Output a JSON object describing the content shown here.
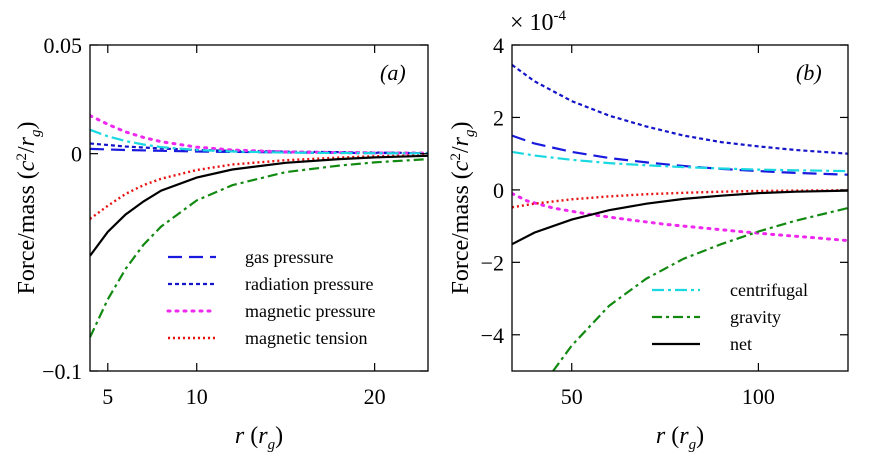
{
  "figure": {
    "ylabel": "Force/mass",
    "ylabel_unit_c": "c",
    "ylabel_unit_r": "r",
    "ylabel_unit_sub": "g",
    "ylabel_unit_sup": "2",
    "xlabel": "r",
    "xlabel_sub": "g",
    "multiplier_prefix": "× 10",
    "multiplier_exp": "-4"
  },
  "series_styles": {
    "gas_pressure": {
      "label": "gas pressure",
      "color": "#1a1adf",
      "dash": "14,7",
      "width": 2.2
    },
    "radiation_pressure": {
      "label": "radiation pressure",
      "color": "#1414c8",
      "dash": "4,3",
      "width": 2.2
    },
    "magnetic_pressure": {
      "label": "magnetic pressure",
      "color": "#ee28ee",
      "dash": "2,6",
      "width": 3
    },
    "magnetic_tension": {
      "label": "magnetic tension",
      "color": "#e81010",
      "dash": "2,3",
      "width": 2.4
    },
    "centrifugal": {
      "label": "centrifugal",
      "color": "#18d8e0",
      "dash": "12,4,3,4",
      "width": 2.2
    },
    "gravity": {
      "label": "gravity",
      "color": "#128a12",
      "dash": "10,4,3,4",
      "width": 2.2
    },
    "net": {
      "label": "net",
      "color": "#000000",
      "dash": "",
      "width": 2.2
    }
  },
  "chart_data": [
    {
      "type": "line",
      "panel": "(a)",
      "title": "",
      "xlabel": "r (r_g)",
      "ylabel": "Force/mass (c^2/r_g)",
      "xlim": [
        4,
        23
      ],
      "ylim": [
        -0.1,
        0.05
      ],
      "xticks": [
        5,
        10,
        20
      ],
      "xtick_labels": [
        "5",
        "10",
        "20"
      ],
      "yticks": [
        -0.1,
        0,
        0.05
      ],
      "ytick_labels": [
        "−0.1",
        "0",
        "0.05"
      ],
      "legend": [
        "gas pressure",
        "radiation pressure",
        "magnetic pressure",
        "magnetic tension"
      ],
      "legend_position": "bottom-right",
      "series": [
        {
          "key": "gas_pressure",
          "name": "gas pressure",
          "x": [
            4,
            6,
            8,
            10,
            12,
            15,
            18,
            20,
            23
          ],
          "y": [
            0.0022,
            0.0017,
            0.0013,
            0.001,
            0.0008,
            0.0006,
            0.0004,
            0.0003,
            0.0002
          ]
        },
        {
          "key": "radiation_pressure",
          "name": "radiation pressure",
          "x": [
            4,
            6,
            8,
            10,
            12,
            15,
            18,
            20,
            23
          ],
          "y": [
            0.0047,
            0.0033,
            0.0024,
            0.0017,
            0.0013,
            0.0009,
            0.0007,
            0.0005,
            0.0003
          ]
        },
        {
          "key": "magnetic_pressure",
          "name": "magnetic pressure",
          "x": [
            4,
            5,
            6,
            7,
            8,
            10,
            12,
            15,
            18,
            20,
            23
          ],
          "y": [
            0.0175,
            0.0135,
            0.01,
            0.0075,
            0.0055,
            0.003,
            0.0017,
            0.0008,
            0.0005,
            0.0003,
            0.0002
          ]
        },
        {
          "key": "magnetic_tension",
          "name": "magnetic tension",
          "x": [
            4,
            5,
            6,
            7,
            8,
            10,
            12,
            15,
            18,
            20,
            23
          ],
          "y": [
            -0.03,
            -0.024,
            -0.0185,
            -0.0145,
            -0.0115,
            -0.0075,
            -0.005,
            -0.003,
            -0.0018,
            -0.0012,
            -0.0007
          ]
        },
        {
          "key": "centrifugal",
          "name": "centrifugal",
          "x": [
            4,
            5,
            6,
            7,
            8,
            10,
            12,
            15,
            18,
            20,
            23
          ],
          "y": [
            0.011,
            0.008,
            0.0058,
            0.0042,
            0.003,
            0.0017,
            0.001,
            0.0005,
            0.0003,
            0.0002,
            0.0001
          ]
        },
        {
          "key": "gravity",
          "name": "gravity",
          "x": [
            4,
            5,
            6,
            7,
            8,
            10,
            12,
            15,
            18,
            20,
            23
          ],
          "y": [
            -0.0845,
            -0.067,
            -0.053,
            -0.042,
            -0.0335,
            -0.0215,
            -0.0145,
            -0.0085,
            -0.0055,
            -0.004,
            -0.0025
          ]
        },
        {
          "key": "net",
          "name": "net",
          "x": [
            4,
            5,
            6,
            7,
            8,
            10,
            12,
            15,
            18,
            20,
            23
          ],
          "y": [
            -0.047,
            -0.036,
            -0.028,
            -0.022,
            -0.017,
            -0.011,
            -0.0073,
            -0.0042,
            -0.0025,
            -0.0017,
            -0.001
          ]
        }
      ]
    },
    {
      "type": "line",
      "panel": "(b)",
      "title": "",
      "xlabel": "r (r_g)",
      "ylabel": "Force/mass (c^2/r_g)",
      "y_multiplier": "× 10^-4",
      "xlim": [
        34,
        124
      ],
      "ylim": [
        -5,
        4
      ],
      "xticks": [
        50,
        100
      ],
      "xtick_labels": [
        "50",
        "100"
      ],
      "yticks": [
        -4,
        -2,
        0,
        2,
        4
      ],
      "ytick_labels": [
        "−4",
        "−2",
        "0",
        "2",
        "4"
      ],
      "legend": [
        "centrifugal",
        "gravity",
        "net"
      ],
      "legend_position": "bottom-right",
      "series": [
        {
          "key": "gas_pressure",
          "name": "gas pressure",
          "x": [
            34,
            40,
            50,
            60,
            70,
            80,
            90,
            100,
            110,
            124
          ],
          "y": [
            1.5,
            1.28,
            1.05,
            0.88,
            0.76,
            0.66,
            0.58,
            0.52,
            0.47,
            0.42
          ]
        },
        {
          "key": "radiation_pressure",
          "name": "radiation pressure",
          "x": [
            34,
            40,
            50,
            60,
            70,
            80,
            90,
            100,
            110,
            124
          ],
          "y": [
            3.45,
            3.0,
            2.45,
            2.05,
            1.75,
            1.5,
            1.32,
            1.2,
            1.1,
            1.0
          ]
        },
        {
          "key": "magnetic_pressure",
          "name": "magnetic pressure",
          "x": [
            34,
            38,
            45,
            55,
            65,
            75,
            85,
            95,
            105,
            115,
            124
          ],
          "y": [
            -0.1,
            -0.3,
            -0.5,
            -0.68,
            -0.82,
            -0.95,
            -1.05,
            -1.15,
            -1.24,
            -1.32,
            -1.4
          ]
        },
        {
          "key": "magnetic_tension",
          "name": "magnetic tension",
          "x": [
            34,
            40,
            50,
            60,
            70,
            80,
            90,
            100,
            110,
            124
          ],
          "y": [
            -0.48,
            -0.38,
            -0.26,
            -0.18,
            -0.12,
            -0.08,
            -0.05,
            -0.03,
            -0.02,
            -0.01
          ]
        },
        {
          "key": "centrifugal",
          "name": "centrifugal",
          "x": [
            34,
            40,
            50,
            60,
            70,
            80,
            90,
            100,
            110,
            124
          ],
          "y": [
            1.05,
            0.95,
            0.83,
            0.74,
            0.68,
            0.63,
            0.59,
            0.56,
            0.54,
            0.52
          ]
        },
        {
          "key": "gravity",
          "name": "gravity",
          "x": [
            45,
            50,
            60,
            70,
            80,
            90,
            100,
            110,
            124
          ],
          "y": [
            -5.0,
            -4.3,
            -3.2,
            -2.45,
            -1.9,
            -1.5,
            -1.15,
            -0.85,
            -0.5
          ]
        },
        {
          "key": "net",
          "name": "net",
          "x": [
            34,
            40,
            50,
            60,
            70,
            80,
            90,
            100,
            110,
            124
          ],
          "y": [
            -1.5,
            -1.18,
            -0.82,
            -0.56,
            -0.38,
            -0.25,
            -0.16,
            -0.09,
            -0.05,
            -0.02
          ]
        }
      ]
    }
  ]
}
